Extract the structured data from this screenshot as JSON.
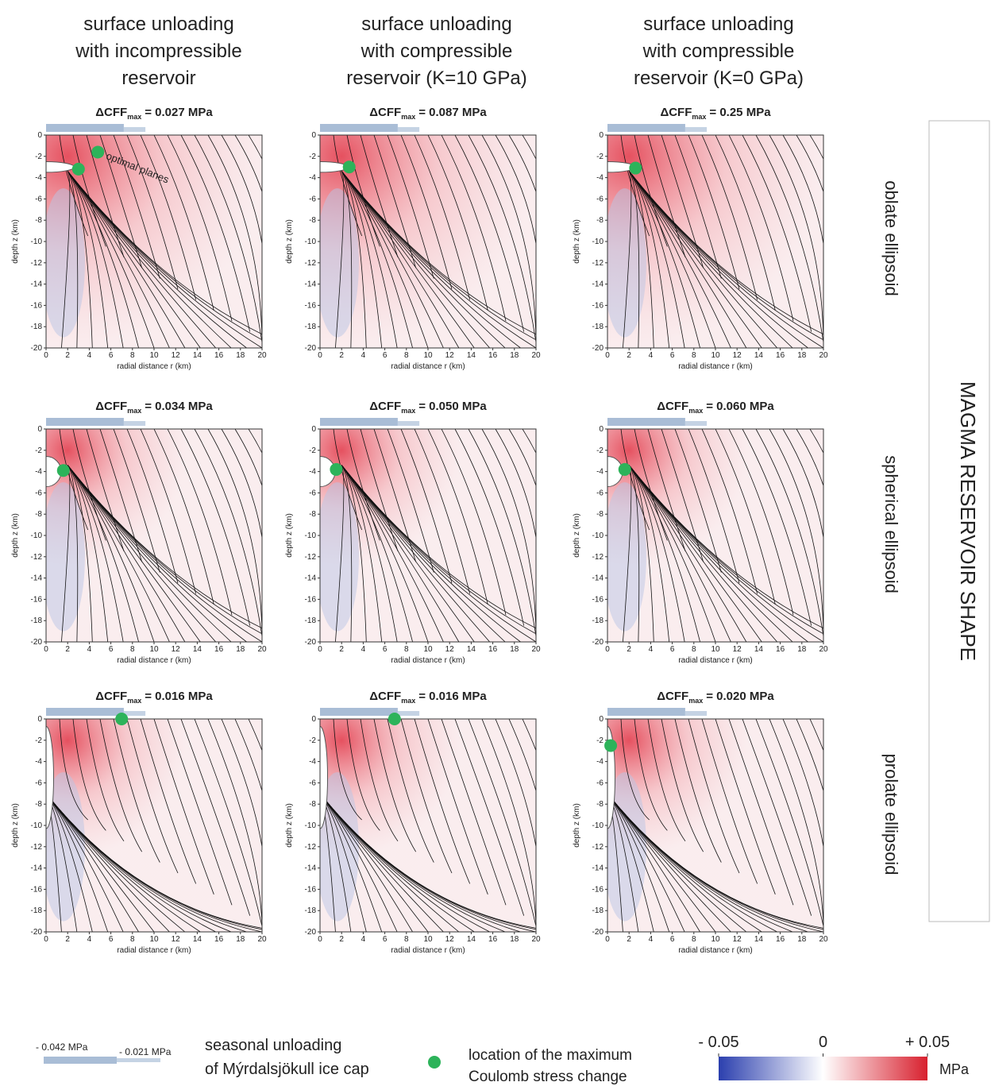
{
  "column_headers": [
    [
      "surface unloading",
      "with incompressible",
      "reservoir"
    ],
    [
      "surface unloading",
      "with compressible",
      "reservoir (K=10 GPa)"
    ],
    [
      "surface unloading",
      "with compressible",
      "reservoir (K=0 GPa)"
    ]
  ],
  "row_labels": [
    "oblate ellipsoid",
    "spherical ellipsoid",
    "prolate ellipsoid"
  ],
  "side_title": "MAGMA RESERVOIR SHAPE",
  "annotation": "optimal planes",
  "legend": {
    "ice_labels": [
      "- 0.042 MPa",
      "- 0.021 MPa"
    ],
    "ice_text": [
      "seasonal unloading",
      "of Mýrdalsjökull ice cap"
    ],
    "dot_text": [
      "location of the maximum",
      "Coulomb stress change"
    ],
    "colorbar": {
      "lim": [
        -0.05,
        0.05
      ],
      "ticks": [
        {
          "value": -0.05,
          "label": "- 0.05"
        },
        0,
        {
          "value": 0.05,
          "label": "+ 0.05"
        }
      ],
      "unit": "MPa"
    }
  },
  "chart_data": [
    {
      "type": "scatter",
      "title": "ΔCFF",
      "title_sub": "max",
      "title_value": "= 0.027 MPa",
      "x": [
        3,
        4.8
      ],
      "y": [
        -3.2,
        -1.6
      ],
      "color": "#2db35a",
      "xlabel": "radial distance r (km)",
      "ylabel": "depth z (km)",
      "xlim": [
        0,
        20
      ],
      "ylim": [
        -20,
        0
      ],
      "xticks": [
        0,
        2,
        4,
        6,
        8,
        10,
        12,
        14,
        16,
        18,
        20
      ],
      "yticks": [
        0,
        -2,
        -4,
        -6,
        -8,
        -10,
        -12,
        -14,
        -16,
        -18,
        -20
      ]
    },
    {
      "type": "scatter",
      "title": "ΔCFF",
      "title_sub": "max",
      "title_value": "= 0.087 MPa",
      "x": [
        2.7
      ],
      "y": [
        -3
      ],
      "color": "#2db35a",
      "xlabel": "radial distance r (km)",
      "ylabel": "depth z (km)",
      "xlim": [
        0,
        20
      ],
      "ylim": [
        -20,
        0
      ],
      "xticks": [
        0,
        2,
        4,
        6,
        8,
        10,
        12,
        14,
        16,
        18,
        20
      ],
      "yticks": [
        0,
        -2,
        -4,
        -6,
        -8,
        -10,
        -12,
        -14,
        -16,
        -18,
        -20
      ]
    },
    {
      "type": "scatter",
      "title": "ΔCFF",
      "title_sub": "max",
      "title_value": "= 0.25 MPa",
      "x": [
        2.6
      ],
      "y": [
        -3.1
      ],
      "color": "#2db35a",
      "xlabel": "radial distance r (km)",
      "ylabel": "depth z (km)",
      "xlim": [
        0,
        20
      ],
      "ylim": [
        -20,
        0
      ],
      "xticks": [
        0,
        2,
        4,
        6,
        8,
        10,
        12,
        14,
        16,
        18,
        20
      ],
      "yticks": [
        0,
        -2,
        -4,
        -6,
        -8,
        -10,
        -12,
        -14,
        -16,
        -18,
        -20
      ]
    },
    {
      "type": "scatter",
      "title": "ΔCFF",
      "title_sub": "max",
      "title_value": "= 0.034 MPa",
      "x": [
        1.6
      ],
      "y": [
        -3.9
      ],
      "color": "#2db35a",
      "xlabel": "radial distance r (km)",
      "ylabel": "depth z (km)",
      "xlim": [
        0,
        20
      ],
      "ylim": [
        -20,
        0
      ],
      "xticks": [
        0,
        2,
        4,
        6,
        8,
        10,
        12,
        14,
        16,
        18,
        20
      ],
      "yticks": [
        0,
        -2,
        -4,
        -6,
        -8,
        -10,
        -12,
        -14,
        -16,
        -18,
        -20
      ]
    },
    {
      "type": "scatter",
      "title": "ΔCFF",
      "title_sub": "max",
      "title_value": "= 0.050 MPa",
      "x": [
        1.5
      ],
      "y": [
        -3.8
      ],
      "color": "#2db35a",
      "xlabel": "radial distance r (km)",
      "ylabel": "depth z (km)",
      "xlim": [
        0,
        20
      ],
      "ylim": [
        -20,
        0
      ],
      "xticks": [
        0,
        2,
        4,
        6,
        8,
        10,
        12,
        14,
        16,
        18,
        20
      ],
      "yticks": [
        0,
        -2,
        -4,
        -6,
        -8,
        -10,
        -12,
        -14,
        -16,
        -18,
        -20
      ]
    },
    {
      "type": "scatter",
      "title": "ΔCFF",
      "title_sub": "max",
      "title_value": "= 0.060 MPa",
      "x": [
        1.6
      ],
      "y": [
        -3.8
      ],
      "color": "#2db35a",
      "xlabel": "radial distance r (km)",
      "ylabel": "depth z (km)",
      "xlim": [
        0,
        20
      ],
      "ylim": [
        -20,
        0
      ],
      "xticks": [
        0,
        2,
        4,
        6,
        8,
        10,
        12,
        14,
        16,
        18,
        20
      ],
      "yticks": [
        0,
        -2,
        -4,
        -6,
        -8,
        -10,
        -12,
        -14,
        -16,
        -18,
        -20
      ]
    },
    {
      "type": "scatter",
      "title": "ΔCFF",
      "title_sub": "max",
      "title_value": "= 0.016 MPa",
      "x": [
        7
      ],
      "y": [
        0
      ],
      "color": "#2db35a",
      "xlabel": "radial distance r (km)",
      "ylabel": "depth z (km)",
      "xlim": [
        0,
        20
      ],
      "ylim": [
        -20,
        0
      ],
      "xticks": [
        0,
        2,
        4,
        6,
        8,
        10,
        12,
        14,
        16,
        18,
        20
      ],
      "yticks": [
        0,
        -2,
        -4,
        -6,
        -8,
        -10,
        -12,
        -14,
        -16,
        -18,
        -20
      ]
    },
    {
      "type": "scatter",
      "title": "ΔCFF",
      "title_sub": "max",
      "title_value": "= 0.016 MPa",
      "x": [
        6.9
      ],
      "y": [
        0
      ],
      "color": "#2db35a",
      "xlabel": "radial distance r (km)",
      "ylabel": "depth z (km)",
      "xlim": [
        0,
        20
      ],
      "ylim": [
        -20,
        0
      ],
      "xticks": [
        0,
        2,
        4,
        6,
        8,
        10,
        12,
        14,
        16,
        18,
        20
      ],
      "yticks": [
        0,
        -2,
        -4,
        -6,
        -8,
        -10,
        -12,
        -14,
        -16,
        -18,
        -20
      ]
    },
    {
      "type": "scatter",
      "title": "ΔCFF",
      "title_sub": "max",
      "title_value": "= 0.020 MPa",
      "x": [
        0.3
      ],
      "y": [
        -2.5
      ],
      "color": "#2db35a",
      "xlabel": "radial distance r (km)",
      "ylabel": "depth z (km)",
      "xlim": [
        0,
        20
      ],
      "ylim": [
        -20,
        0
      ],
      "xticks": [
        0,
        2,
        4,
        6,
        8,
        10,
        12,
        14,
        16,
        18,
        20
      ],
      "yticks": [
        0,
        -2,
        -4,
        -6,
        -8,
        -10,
        -12,
        -14,
        -16,
        -18,
        -20
      ]
    }
  ]
}
